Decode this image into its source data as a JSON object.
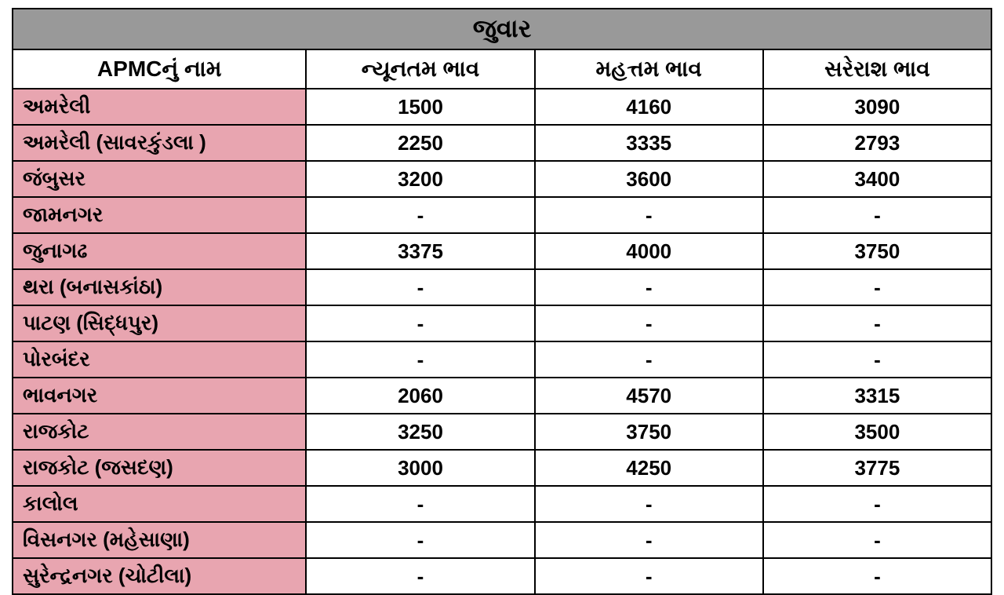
{
  "table": {
    "title": "જુવાર",
    "columns": [
      "APMCનું નામ",
      "ન્યૂનતમ ભાવ",
      "મહત્તમ ભાવ",
      "સરેરાશ ભાવ"
    ],
    "title_bg": "#999999",
    "name_col_bg": "#e8a5b0",
    "data_bg": "#ffffff",
    "border_color": "#000000",
    "title_fontsize": 32,
    "header_fontsize": 28,
    "cell_fontsize": 26,
    "rows": [
      {
        "name": "અમરેલી",
        "min": "1500",
        "max": "4160",
        "avg": "3090"
      },
      {
        "name": "અમરેલી (સાવરકુંડલા )",
        "min": "2250",
        "max": "3335",
        "avg": "2793"
      },
      {
        "name": "જંબુસર",
        "min": "3200",
        "max": "3600",
        "avg": "3400"
      },
      {
        "name": "જામનગર",
        "min": "-",
        "max": "-",
        "avg": "-"
      },
      {
        "name": "જુનાગઢ",
        "min": "3375",
        "max": "4000",
        "avg": "3750"
      },
      {
        "name": "થરા (બનાસકાંઠા)",
        "min": "-",
        "max": "-",
        "avg": "-"
      },
      {
        "name": "પાટણ (સિદ્ધપુર)",
        "min": "-",
        "max": "-",
        "avg": "-"
      },
      {
        "name": "પોરબંદર",
        "min": "-",
        "max": "-",
        "avg": "-"
      },
      {
        "name": "ભાવનગર",
        "min": "2060",
        "max": "4570",
        "avg": "3315"
      },
      {
        "name": "રાજકોટ",
        "min": "3250",
        "max": "3750",
        "avg": "3500"
      },
      {
        "name": "રાજકોટ  (જસદણ)",
        "min": "3000",
        "max": "4250",
        "avg": "3775"
      },
      {
        "name": "કાલોલ",
        "min": "-",
        "max": "-",
        "avg": "-"
      },
      {
        "name": "વિસનગર (મહેસાણા)",
        "min": "-",
        "max": "-",
        "avg": "-"
      },
      {
        "name": "સુરેન્દ્રનગર (ચોટીલા)",
        "min": "-",
        "max": "-",
        "avg": "-"
      }
    ]
  }
}
